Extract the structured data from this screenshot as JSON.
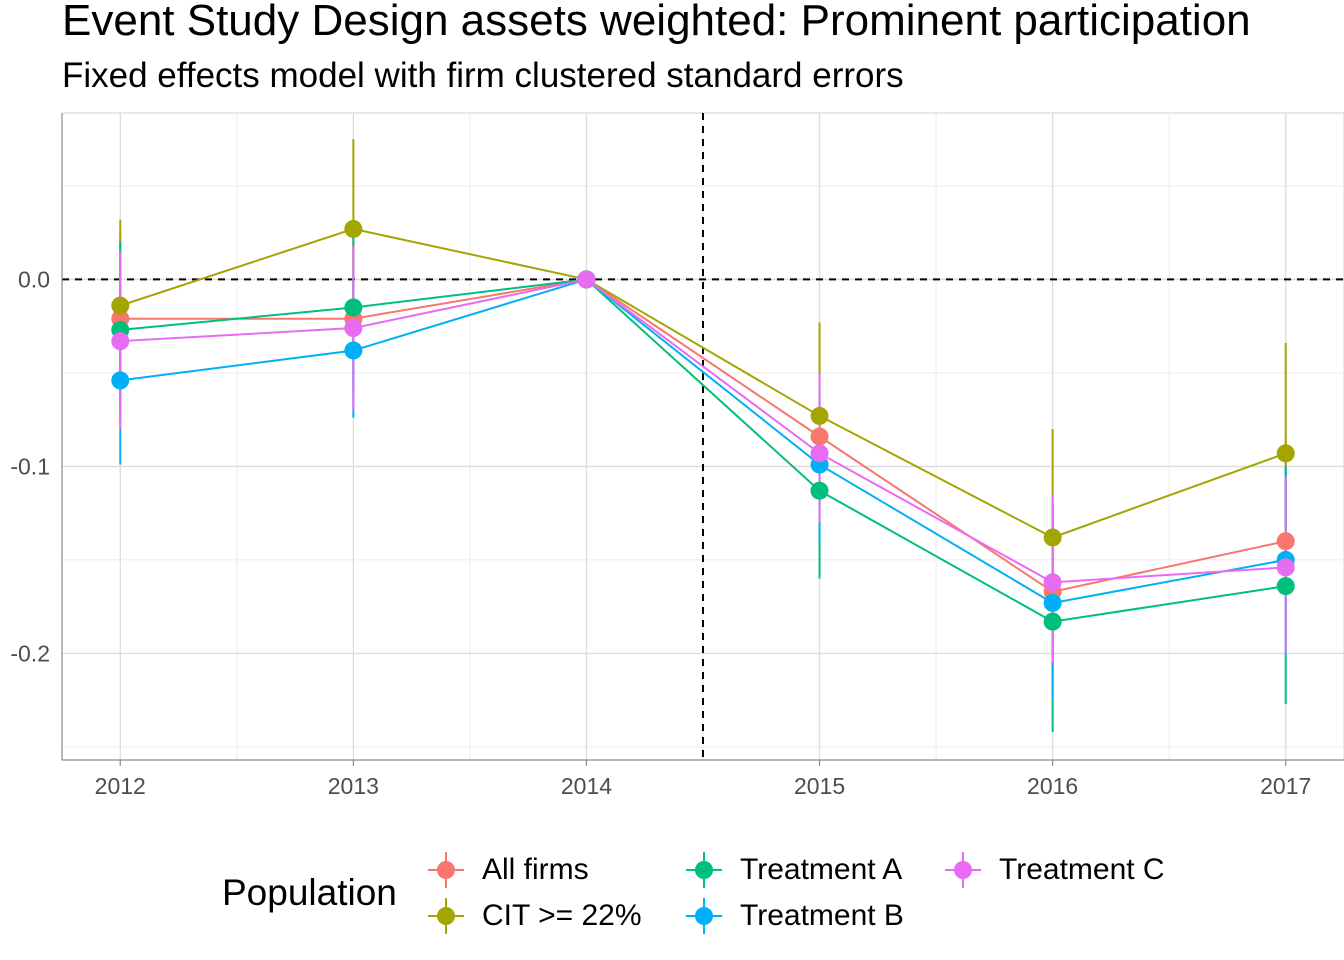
{
  "title": "Event Study Design assets weighted: Prominent participation",
  "subtitle": "Fixed effects model with firm clustered standard errors",
  "legend_title": "Population",
  "chart_data": {
    "type": "line",
    "x": [
      2012,
      2013,
      2014,
      2015,
      2016,
      2017
    ],
    "xlim": [
      2011.75,
      2017.25
    ],
    "ylim": [
      -0.257,
      0.089
    ],
    "y_ticks": [
      0.0,
      -0.1,
      -0.2
    ],
    "y_tick_labels": [
      "0.0",
      "-0.1",
      "-0.2"
    ],
    "x_tick_labels": [
      "2012",
      "2013",
      "2014",
      "2015",
      "2016",
      "2017"
    ],
    "vline": 2014.5,
    "hline": 0,
    "grid": true,
    "legend_position": "bottom",
    "series": [
      {
        "name": "All firms",
        "color": "#F8766D",
        "values": [
          -0.021,
          -0.021,
          0.0,
          -0.084,
          -0.167,
          -0.14
        ],
        "ci_low": [
          -0.07,
          -0.07,
          0.0,
          -0.13,
          -0.21,
          -0.195
        ],
        "ci_high": [
          0.025,
          0.02,
          0.0,
          -0.035,
          -0.12,
          -0.085
        ]
      },
      {
        "name": "CIT >= 22%",
        "color": "#A3A500",
        "values": [
          -0.014,
          0.027,
          0.0,
          -0.073,
          -0.138,
          -0.093
        ],
        "ci_low": [
          -0.06,
          -0.02,
          0.0,
          -0.12,
          -0.19,
          -0.15
        ],
        "ci_high": [
          0.032,
          0.075,
          0.0,
          -0.023,
          -0.08,
          -0.034
        ]
      },
      {
        "name": "Treatment A",
        "color": "#00BF7D",
        "values": [
          -0.027,
          -0.015,
          0.0,
          -0.113,
          -0.183,
          -0.164
        ],
        "ci_low": [
          -0.075,
          -0.06,
          0.0,
          -0.16,
          -0.242,
          -0.227
        ],
        "ci_high": [
          0.02,
          0.03,
          0.0,
          -0.065,
          -0.125,
          -0.1
        ]
      },
      {
        "name": "Treatment B",
        "color": "#00B0F6",
        "values": [
          -0.054,
          -0.038,
          0.0,
          -0.099,
          -0.173,
          -0.15
        ],
        "ci_low": [
          -0.099,
          -0.074,
          0.0,
          -0.14,
          -0.225,
          -0.2
        ],
        "ci_high": [
          -0.01,
          0.0,
          0.0,
          -0.058,
          -0.12,
          -0.1
        ]
      },
      {
        "name": "Treatment C",
        "color": "#E76BF3",
        "values": [
          -0.033,
          -0.026,
          0.0,
          -0.093,
          -0.162,
          -0.154
        ],
        "ci_low": [
          -0.08,
          -0.07,
          0.0,
          -0.13,
          -0.205,
          -0.2
        ],
        "ci_high": [
          0.015,
          0.018,
          0.0,
          -0.05,
          -0.115,
          -0.105
        ]
      }
    ]
  }
}
